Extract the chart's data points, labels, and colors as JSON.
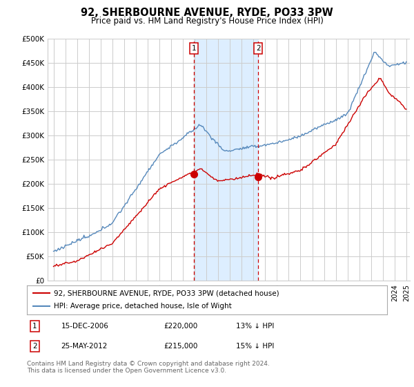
{
  "title": "92, SHERBOURNE AVENUE, RYDE, PO33 3PW",
  "subtitle": "Price paid vs. HM Land Registry's House Price Index (HPI)",
  "ylabel_ticks": [
    "£0",
    "£50K",
    "£100K",
    "£150K",
    "£200K",
    "£250K",
    "£300K",
    "£350K",
    "£400K",
    "£450K",
    "£500K"
  ],
  "ytick_values": [
    0,
    50000,
    100000,
    150000,
    200000,
    250000,
    300000,
    350000,
    400000,
    450000,
    500000
  ],
  "ylim": [
    0,
    500000
  ],
  "xlim_start": 1994.5,
  "xlim_end": 2025.3,
  "purchase1_year": 2006.96,
  "purchase1_label": "1",
  "purchase1_date": "15-DEC-2006",
  "purchase1_price": "£220,000",
  "purchase1_hpi": "13% ↓ HPI",
  "purchase1_price_val": 220000,
  "purchase2_year": 2012.4,
  "purchase2_label": "2",
  "purchase2_date": "25-MAY-2012",
  "purchase2_price": "£215,000",
  "purchase2_hpi": "15% ↓ HPI",
  "purchase2_price_val": 215000,
  "legend_line1": "92, SHERBOURNE AVENUE, RYDE, PO33 3PW (detached house)",
  "legend_line2": "HPI: Average price, detached house, Isle of Wight",
  "footer": "Contains HM Land Registry data © Crown copyright and database right 2024.\nThis data is licensed under the Open Government Licence v3.0.",
  "line_color_red": "#cc0000",
  "line_color_blue": "#5588bb",
  "shade_color": "#ddeeff",
  "grid_color": "#cccccc",
  "background_color": "#ffffff",
  "title_fontsize": 10.5,
  "subtitle_fontsize": 8.5,
  "tick_fontsize": 7.5,
  "legend_fontsize": 7.5,
  "footer_fontsize": 6.5
}
